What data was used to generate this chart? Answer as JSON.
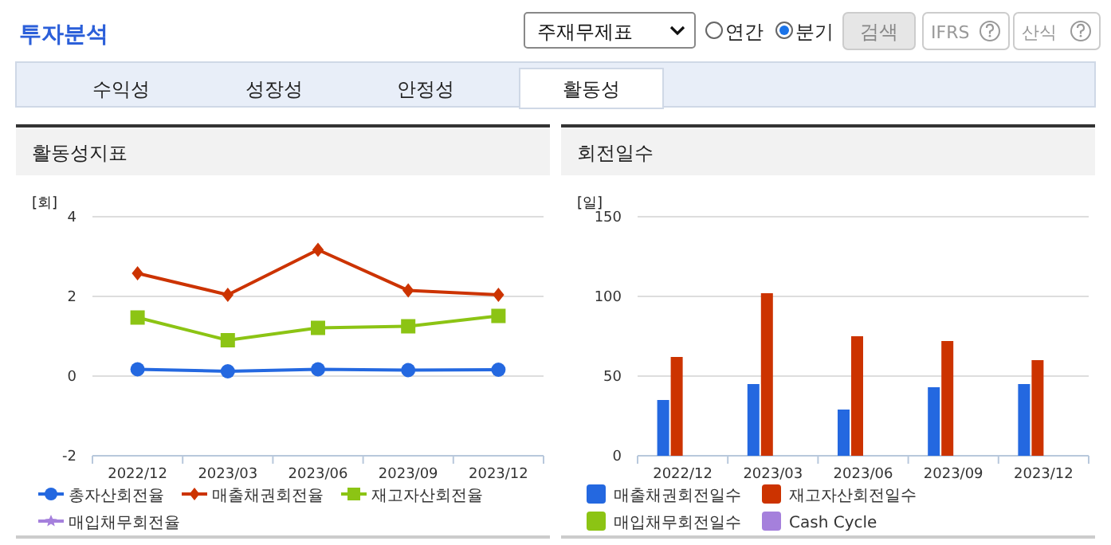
{
  "chart_data": [
    {
      "type": "other",
      "title": "투자분석",
      "annotations": [
        "주재무제표",
        "연간",
        "분기",
        "검색",
        "IFRS",
        "산식",
        "수익성",
        "성장성",
        "안정성",
        "활동성"
      ]
    },
    {
      "type": "line",
      "title": "활동성지표",
      "ylabel": "[회]",
      "categories": [
        "2022/12",
        "2023/03",
        "2023/06",
        "2023/09",
        "2023/12"
      ],
      "ylim": [
        -2,
        4
      ],
      "yticks": [
        -2,
        0,
        2,
        4
      ],
      "grid": "y",
      "legend": "bottom",
      "series": [
        {
          "name": "총자산회전율",
          "color": "#2468e0",
          "marker": "circle",
          "values": [
            0.17,
            0.12,
            0.17,
            0.15,
            0.16
          ]
        },
        {
          "name": "매출채권회전율",
          "color": "#cc3300",
          "marker": "diamond",
          "values": [
            2.58,
            2.04,
            3.17,
            2.15,
            2.04
          ]
        },
        {
          "name": "재고자산회전율",
          "color": "#8cc414",
          "marker": "square",
          "values": [
            1.47,
            0.9,
            1.21,
            1.25,
            1.51
          ]
        },
        {
          "name": "매입채무회전율",
          "color": "#a580dc",
          "marker": "star",
          "values": [
            null,
            null,
            null,
            null,
            null
          ]
        }
      ]
    },
    {
      "type": "bar",
      "title": "회전일수",
      "ylabel": "[일]",
      "categories": [
        "2022/12",
        "2023/03",
        "2023/06",
        "2023/09",
        "2023/12"
      ],
      "ylim": [
        0,
        150
      ],
      "yticks": [
        0,
        50,
        100,
        150
      ],
      "grid": "y",
      "legend": "bottom",
      "series": [
        {
          "name": "매출채권회전일수",
          "color": "#2468e0",
          "values": [
            35,
            45,
            29,
            43,
            45
          ]
        },
        {
          "name": "재고자산회전일수",
          "color": "#cc3300",
          "values": [
            62,
            102,
            75,
            72,
            60
          ]
        },
        {
          "name": "매입채무회전일수",
          "color": "#8cc414",
          "values": [
            null,
            null,
            null,
            null,
            null
          ]
        },
        {
          "name": "Cash Cycle",
          "color": "#a580dc",
          "values": [
            null,
            null,
            null,
            null,
            null
          ]
        }
      ]
    }
  ]
}
